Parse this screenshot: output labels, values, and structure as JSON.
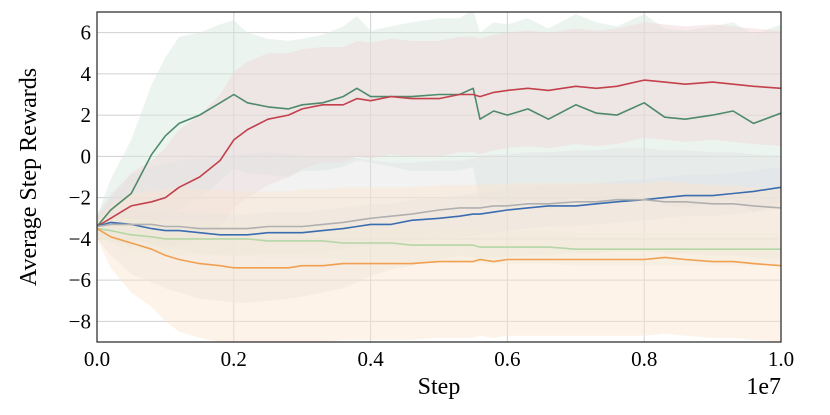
{
  "chart_data": {
    "type": "line",
    "title": "",
    "xlabel": "Step",
    "ylabel": "Average Step Rewards",
    "x_multiplier_label": "1e7",
    "xlim": [
      0.0,
      1.0
    ],
    "ylim": [
      -9,
      7
    ],
    "grid": true,
    "x_ticks": [
      0.0,
      0.2,
      0.4,
      0.6,
      0.8,
      1.0
    ],
    "x_tick_labels": [
      "0.0",
      "0.2",
      "0.4",
      "0.6",
      "0.8",
      "1.0"
    ],
    "y_ticks": [
      -8,
      -6,
      -4,
      -2,
      0,
      2,
      4,
      6
    ],
    "y_tick_labels": [
      "−8",
      "−6",
      "−4",
      "−2",
      "0",
      "2",
      "4",
      "6"
    ],
    "x": [
      0.0,
      0.02,
      0.05,
      0.08,
      0.1,
      0.12,
      0.15,
      0.18,
      0.2,
      0.22,
      0.25,
      0.28,
      0.3,
      0.33,
      0.36,
      0.38,
      0.4,
      0.43,
      0.46,
      0.5,
      0.53,
      0.55,
      0.56,
      0.58,
      0.6,
      0.63,
      0.66,
      0.7,
      0.73,
      0.76,
      0.8,
      0.83,
      0.86,
      0.9,
      0.93,
      0.96,
      1.0
    ],
    "series": [
      {
        "name": "green",
        "color": "#4e8a6a",
        "band_color": "#d5e6dd",
        "values": [
          -3.4,
          -2.6,
          -1.8,
          0.1,
          1.0,
          1.6,
          2.0,
          2.6,
          3.0,
          2.6,
          2.4,
          2.3,
          2.5,
          2.6,
          2.9,
          3.3,
          2.9,
          2.9,
          2.9,
          3.0,
          3.0,
          3.3,
          1.8,
          2.2,
          2.0,
          2.3,
          1.8,
          2.5,
          2.1,
          2.0,
          2.6,
          1.9,
          1.8,
          2.0,
          2.2,
          1.6,
          2.1
        ],
        "band_halfwidth": [
          0.5,
          1.5,
          2.6,
          3.4,
          3.8,
          4.2,
          4.0,
          3.8,
          3.6,
          3.4,
          3.3,
          3.3,
          3.2,
          3.3,
          3.4,
          3.5,
          3.2,
          3.4,
          3.6,
          3.7,
          3.7,
          3.8,
          4.2,
          4.3,
          4.4,
          4.4,
          4.4,
          4.4,
          4.4,
          4.3,
          4.3,
          4.3,
          4.3,
          4.3,
          4.3,
          4.3,
          4.3
        ]
      },
      {
        "name": "red",
        "color": "#c2414b",
        "band_color": "#f2d3d7",
        "values": [
          -3.4,
          -3.0,
          -2.4,
          -2.2,
          -2.0,
          -1.5,
          -1.0,
          -0.2,
          0.8,
          1.3,
          1.8,
          2.0,
          2.3,
          2.5,
          2.5,
          2.8,
          2.7,
          2.9,
          2.8,
          2.8,
          3.0,
          3.0,
          2.9,
          3.1,
          3.2,
          3.3,
          3.2,
          3.4,
          3.3,
          3.4,
          3.7,
          3.6,
          3.5,
          3.6,
          3.5,
          3.4,
          3.3
        ],
        "band_halfwidth": [
          0.4,
          1.0,
          1.6,
          2.0,
          2.4,
          2.8,
          3.0,
          3.2,
          3.3,
          3.3,
          3.2,
          3.0,
          2.9,
          2.8,
          2.8,
          2.8,
          2.8,
          2.8,
          2.8,
          2.8,
          2.8,
          2.8,
          2.8,
          2.8,
          2.8,
          2.8,
          2.8,
          2.8,
          2.8,
          2.8,
          2.8,
          2.8,
          2.8,
          2.8,
          2.8,
          2.8,
          2.8
        ]
      },
      {
        "name": "blue",
        "color": "#3a6db0",
        "band_color": "#d9e3f2",
        "values": [
          -3.4,
          -3.2,
          -3.3,
          -3.5,
          -3.6,
          -3.6,
          -3.7,
          -3.8,
          -3.8,
          -3.8,
          -3.7,
          -3.7,
          -3.7,
          -3.6,
          -3.5,
          -3.4,
          -3.3,
          -3.3,
          -3.1,
          -3.0,
          -2.9,
          -2.8,
          -2.8,
          -2.7,
          -2.6,
          -2.5,
          -2.4,
          -2.4,
          -2.3,
          -2.2,
          -2.1,
          -2.0,
          -1.9,
          -1.9,
          -1.8,
          -1.7,
          -1.5
        ],
        "band_halfwidth": [
          0.5,
          0.6,
          0.7,
          0.8,
          0.9,
          0.9,
          1.0,
          1.0,
          1.0,
          1.0,
          1.0,
          1.0,
          1.0,
          1.0,
          1.0,
          1.0,
          1.0,
          1.0,
          1.0,
          1.0,
          1.0,
          1.0,
          1.0,
          1.0,
          1.0,
          1.0,
          1.0,
          1.0,
          1.0,
          1.0,
          1.0,
          1.0,
          1.0,
          1.0,
          1.0,
          1.0,
          1.0
        ]
      },
      {
        "name": "gray",
        "color": "#b0b0b0",
        "band_color": "#e2e2e2",
        "values": [
          -3.4,
          -3.3,
          -3.3,
          -3.3,
          -3.4,
          -3.4,
          -3.5,
          -3.5,
          -3.5,
          -3.5,
          -3.4,
          -3.4,
          -3.4,
          -3.3,
          -3.2,
          -3.1,
          -3.0,
          -2.9,
          -2.8,
          -2.6,
          -2.5,
          -2.5,
          -2.5,
          -2.4,
          -2.4,
          -2.3,
          -2.3,
          -2.2,
          -2.2,
          -2.1,
          -2.1,
          -2.2,
          -2.2,
          -2.3,
          -2.3,
          -2.4,
          -2.5
        ],
        "band_halfwidth": [
          0.6,
          1.5,
          2.4,
          2.8,
          3.0,
          3.2,
          3.4,
          3.5,
          3.6,
          3.6,
          3.6,
          3.5,
          3.4,
          3.3,
          3.2,
          3.0,
          2.8,
          2.6,
          2.5,
          2.4,
          2.3,
          2.4,
          2.5,
          2.5,
          2.5,
          2.5,
          2.5,
          2.5,
          2.5,
          2.5,
          2.5,
          2.5,
          2.5,
          2.5,
          2.5,
          2.5,
          2.5
        ]
      },
      {
        "name": "light-green",
        "color": "#b5d6a6",
        "band_color": "#e7f0e0",
        "values": [
          -3.5,
          -3.6,
          -3.8,
          -3.9,
          -4.0,
          -4.0,
          -4.0,
          -4.0,
          -4.0,
          -4.0,
          -4.1,
          -4.1,
          -4.1,
          -4.1,
          -4.2,
          -4.2,
          -4.2,
          -4.2,
          -4.3,
          -4.3,
          -4.3,
          -4.3,
          -4.4,
          -4.4,
          -4.4,
          -4.4,
          -4.4,
          -4.5,
          -4.5,
          -4.5,
          -4.5,
          -4.5,
          -4.5,
          -4.5,
          -4.5,
          -4.5,
          -4.5
        ],
        "band_halfwidth": [
          0.4,
          0.6,
          0.8,
          0.8,
          0.8,
          0.8,
          0.8,
          0.8,
          0.8,
          0.8,
          0.8,
          0.8,
          0.8,
          0.8,
          0.8,
          0.8,
          0.8,
          0.8,
          0.8,
          0.8,
          0.8,
          0.8,
          0.8,
          0.8,
          0.8,
          0.8,
          0.8,
          0.8,
          0.8,
          0.8,
          0.8,
          0.8,
          0.8,
          0.8,
          0.8,
          0.8,
          0.8
        ]
      },
      {
        "name": "orange",
        "color": "#f0a050",
        "band_color": "#fbe4cf",
        "values": [
          -3.5,
          -3.9,
          -4.2,
          -4.5,
          -4.8,
          -5.0,
          -5.2,
          -5.3,
          -5.4,
          -5.4,
          -5.4,
          -5.4,
          -5.3,
          -5.3,
          -5.2,
          -5.2,
          -5.2,
          -5.2,
          -5.2,
          -5.1,
          -5.1,
          -5.1,
          -5.0,
          -5.1,
          -5.0,
          -5.0,
          -5.0,
          -5.0,
          -5.0,
          -5.0,
          -5.0,
          -4.9,
          -5.0,
          -5.1,
          -5.1,
          -5.2,
          -5.3
        ],
        "band_halfwidth": [
          0.5,
          1.5,
          2.4,
          2.8,
          3.2,
          3.5,
          3.6,
          3.7,
          3.7,
          3.7,
          3.7,
          3.7,
          3.7,
          3.7,
          3.7,
          3.7,
          3.7,
          3.7,
          3.7,
          3.7,
          3.7,
          3.7,
          3.7,
          3.7,
          3.7,
          3.7,
          3.7,
          3.7,
          3.7,
          3.7,
          3.7,
          3.7,
          3.7,
          3.7,
          3.7,
          3.7,
          3.7
        ]
      }
    ]
  }
}
